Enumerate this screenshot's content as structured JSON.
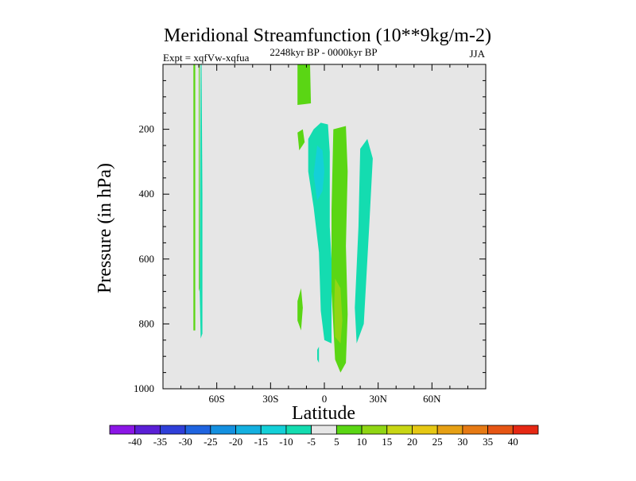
{
  "chart_data": {
    "type": "contour",
    "title": "Meridional Streamfunction (10**9kg/m-2)",
    "subtitle_left": "Expt = xqfVw-xqfua",
    "subtitle_center": "2248kyr BP - 0000kyr BP",
    "subtitle_right": "JJA",
    "xlabel": "Latitude",
    "ylabel": "Pressure (in hPa)",
    "xlim": [
      -90,
      90
    ],
    "ylim": [
      1000,
      0
    ],
    "x_ticks": [
      {
        "value": -60,
        "label": "60S"
      },
      {
        "value": -30,
        "label": "30S"
      },
      {
        "value": 0,
        "label": "0"
      },
      {
        "value": 30,
        "label": "30N"
      },
      {
        "value": 60,
        "label": "60N"
      }
    ],
    "y_ticks": [
      {
        "value": 200,
        "label": "200"
      },
      {
        "value": 400,
        "label": "400"
      },
      {
        "value": 600,
        "label": "600"
      },
      {
        "value": 800,
        "label": "800"
      },
      {
        "value": 1000,
        "label": "1000"
      }
    ],
    "background_color": "#e6e6e6",
    "colorbar": {
      "levels": [
        "-40",
        "-35",
        "-30",
        "-25",
        "-20",
        "-15",
        "-10",
        "-5",
        "5",
        "10",
        "15",
        "20",
        "25",
        "30",
        "35",
        "40"
      ],
      "colors": [
        "#8b16e6",
        "#5a1fd6",
        "#2f3fd9",
        "#1f64e0",
        "#1490e0",
        "#14b0e0",
        "#14d0d8",
        "#14dcb0",
        "#e6e6e6",
        "#5ad614",
        "#90d614",
        "#c8d614",
        "#e6c814",
        "#e6a014",
        "#e67a14",
        "#e65514",
        "#e62814"
      ]
    },
    "regions": [
      {
        "name": "polar-green-strip",
        "color": "#5ad614",
        "points": [
          [
            -73,
            0
          ],
          [
            -72,
            0
          ],
          [
            -72,
            820
          ],
          [
            -73,
            820
          ]
        ]
      },
      {
        "name": "polar-cyan-strip",
        "color": "#14dcb0",
        "points": [
          [
            -69,
            0
          ],
          [
            -68.5,
            0
          ],
          [
            -68,
            400
          ],
          [
            -68,
            830
          ],
          [
            -69,
            845
          ],
          [
            -69.5,
            700
          ]
        ]
      },
      {
        "name": "polar-green-strip-2",
        "color": "#5ad614",
        "points": [
          [
            -70,
            0
          ],
          [
            -69.5,
            0
          ],
          [
            -69.5,
            690
          ],
          [
            -70,
            700
          ]
        ]
      },
      {
        "name": "upper-green-patch",
        "color": "#5ad614",
        "points": [
          [
            -15,
            0
          ],
          [
            -8,
            0
          ],
          [
            -7.5,
            120
          ],
          [
            -15,
            125
          ]
        ]
      },
      {
        "name": "small-green-patch-upper",
        "color": "#5ad614",
        "points": [
          [
            -15,
            210
          ],
          [
            -12,
            200
          ],
          [
            -11,
            240
          ],
          [
            -14,
            265
          ]
        ]
      },
      {
        "name": "small-green-patch-lower",
        "color": "#5ad614",
        "points": [
          [
            -15,
            730
          ],
          [
            -13,
            690
          ],
          [
            -12,
            750
          ],
          [
            -13,
            820
          ],
          [
            -15,
            790
          ]
        ]
      },
      {
        "name": "tropical-cyan-cell",
        "color": "#14dcb0",
        "points": [
          [
            -6,
            200
          ],
          [
            -2,
            180
          ],
          [
            2,
            185
          ],
          [
            3,
            270
          ],
          [
            3,
            500
          ],
          [
            4,
            600
          ],
          [
            4,
            860
          ],
          [
            0,
            850
          ],
          [
            -2,
            760
          ],
          [
            -3,
            580
          ],
          [
            -6,
            440
          ],
          [
            -9,
            330
          ],
          [
            -9,
            230
          ]
        ]
      },
      {
        "name": "tropical-deep-cyan-core",
        "color": "#14d0d8",
        "points": [
          [
            -4,
            250
          ],
          [
            -1,
            265
          ],
          [
            0,
            330
          ],
          [
            -1,
            390
          ],
          [
            -4,
            420
          ],
          [
            -6,
            340
          ]
        ]
      },
      {
        "name": "small-cyan-dot",
        "color": "#14dcb0",
        "points": [
          [
            -4,
            880
          ],
          [
            -3,
            870
          ],
          [
            -3,
            920
          ],
          [
            -4,
            910
          ]
        ]
      },
      {
        "name": "tropical-green-cell",
        "color": "#5ad614",
        "points": [
          [
            5,
            200
          ],
          [
            12,
            190
          ],
          [
            13,
            330
          ],
          [
            12,
            560
          ],
          [
            13,
            770
          ],
          [
            12,
            920
          ],
          [
            9,
            950
          ],
          [
            6,
            910
          ],
          [
            4,
            700
          ],
          [
            4,
            450
          ]
        ]
      },
      {
        "name": "tropical-yellow-green-core",
        "color": "#90d614",
        "points": [
          [
            6,
            660
          ],
          [
            9,
            690
          ],
          [
            10,
            790
          ],
          [
            9,
            860
          ],
          [
            6,
            840
          ],
          [
            5.5,
            740
          ]
        ]
      },
      {
        "name": "nh-cyan-cell",
        "color": "#14dcb0",
        "points": [
          [
            20,
            260
          ],
          [
            24,
            230
          ],
          [
            27,
            290
          ],
          [
            25,
            500
          ],
          [
            22,
            800
          ],
          [
            18,
            860
          ],
          [
            17,
            750
          ],
          [
            19,
            500
          ]
        ]
      }
    ]
  }
}
